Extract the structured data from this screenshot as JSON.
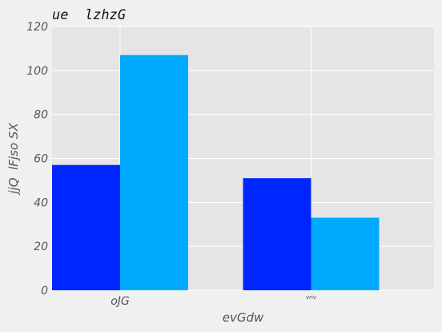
{
  "chart_data": {
    "type": "bar",
    "title": "ue  lzhzG",
    "xlabel": "evGdw",
    "ylabel": "jjQ  lFjso SX",
    "categories": [
      "oJG",
      "vriv"
    ],
    "series": [
      {
        "values": [
          57,
          51
        ],
        "color": "#0026ff"
      },
      {
        "values": [
          107,
          33
        ],
        "color": "#00aaff"
      }
    ],
    "ylim": [
      0,
      120
    ],
    "yticks": [
      0,
      20,
      40,
      60,
      80,
      100,
      120
    ],
    "grid": true,
    "background": "#e5e5e5",
    "page_background": "#f0f0f0"
  }
}
